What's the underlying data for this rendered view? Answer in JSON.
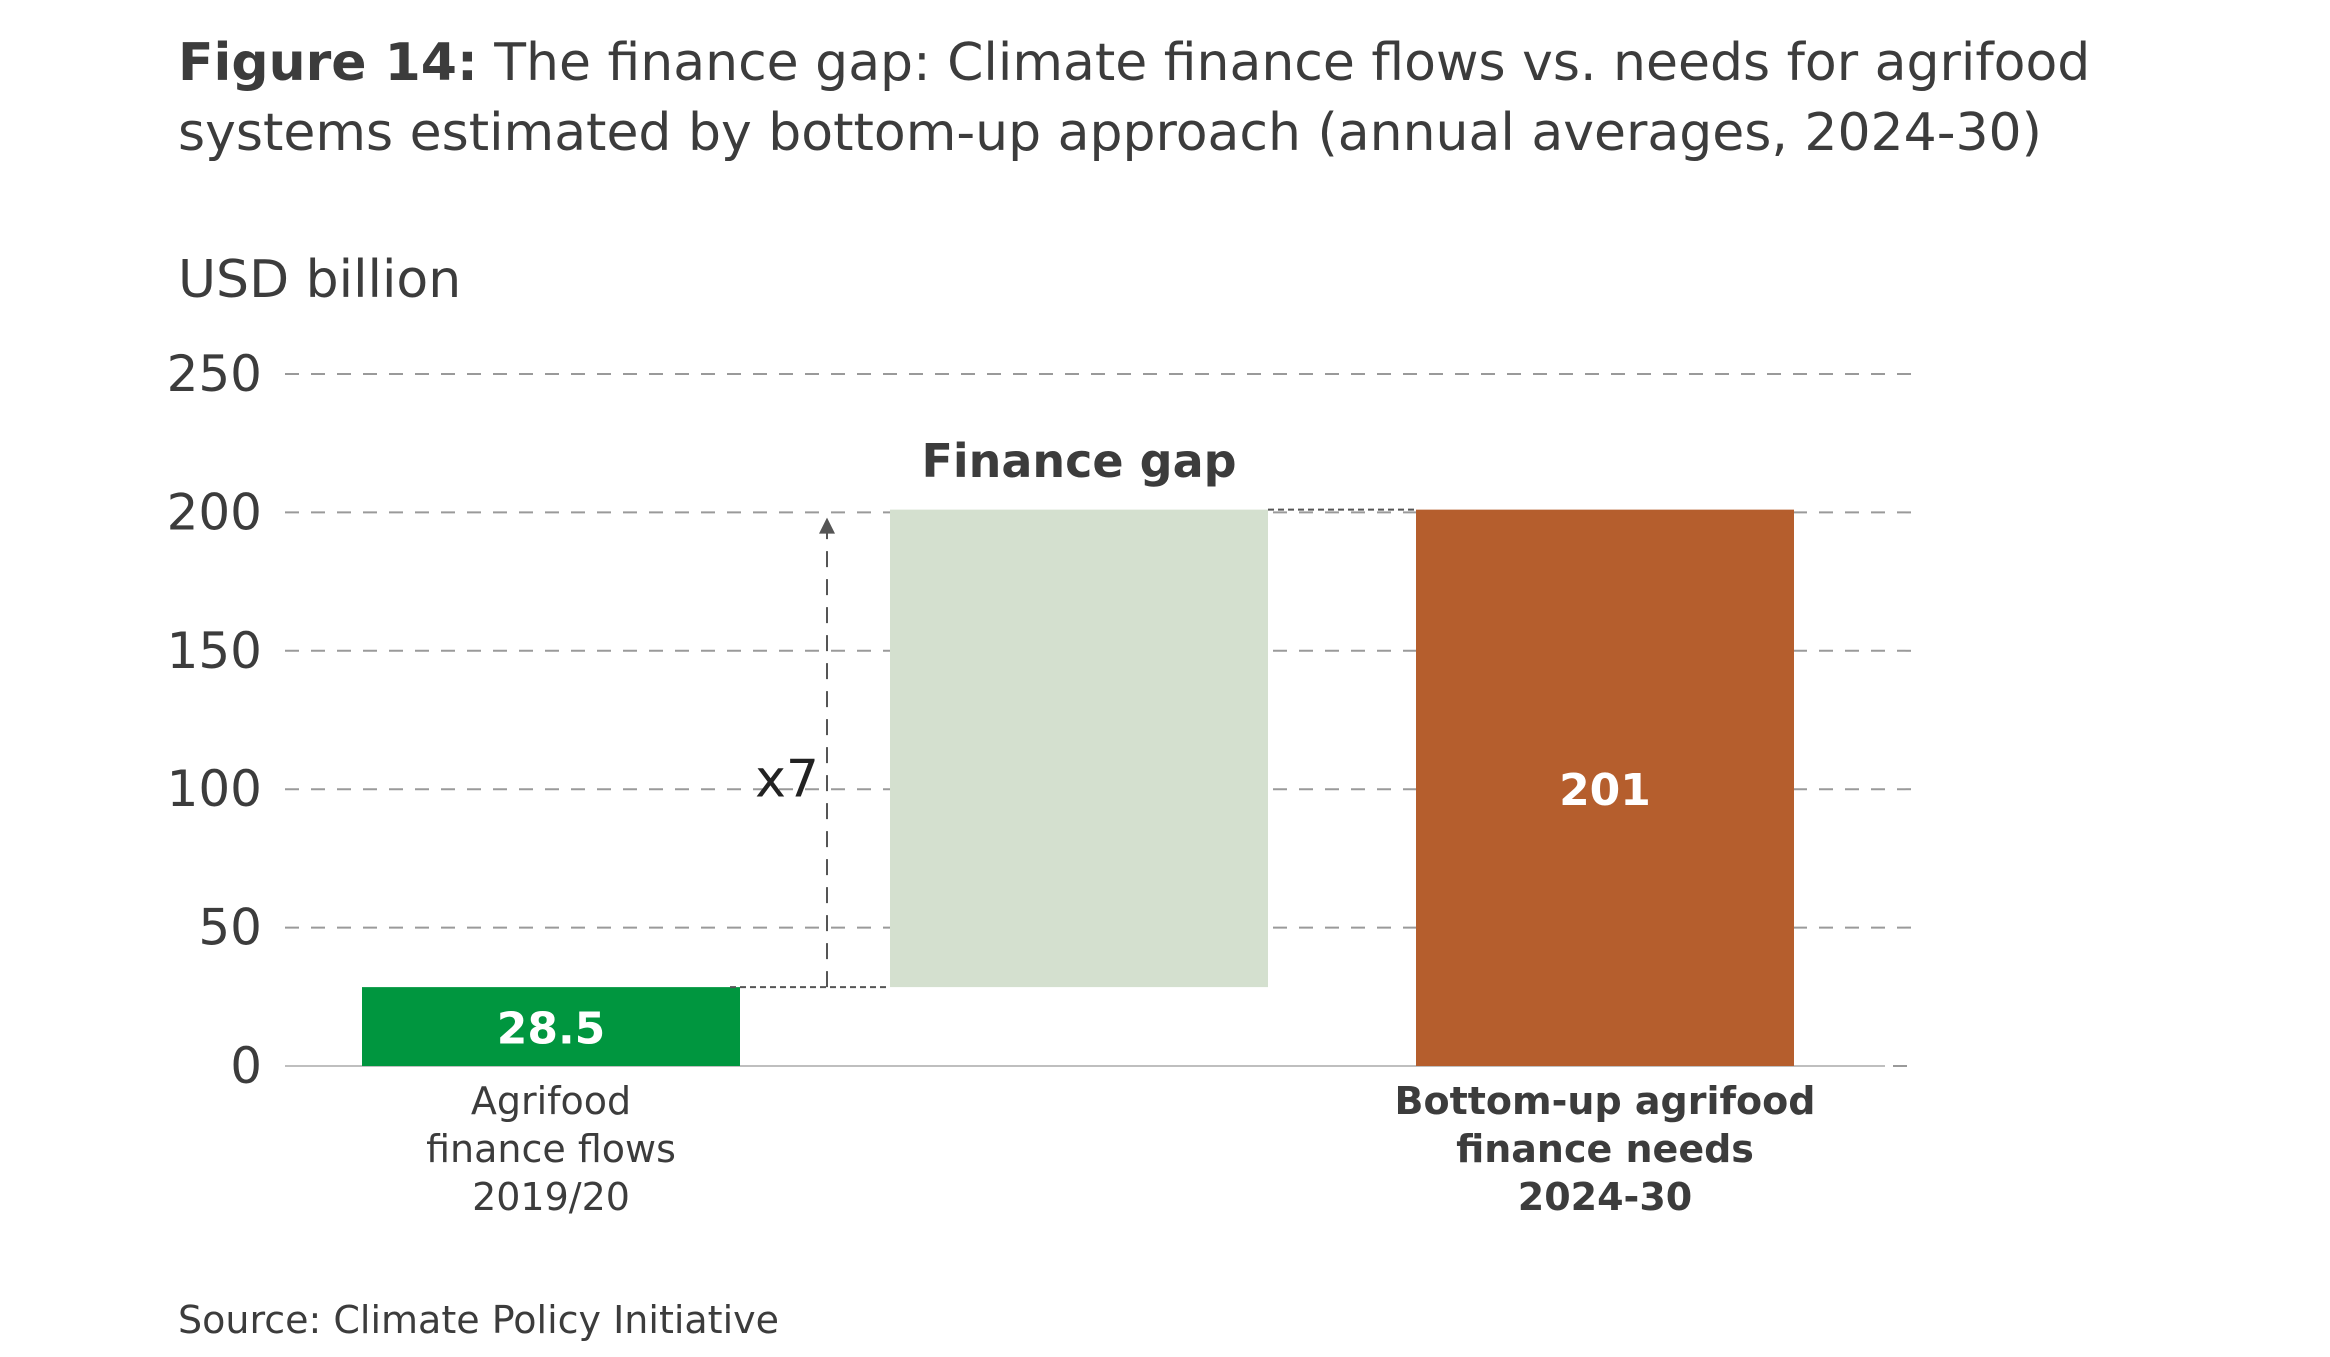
{
  "figure": {
    "label": "Figure 14:",
    "title": "The finance gap: Climate finance flows vs. needs for agrifood systems estimated by bottom-up approach (annual averages, 2024-30)",
    "source": "Source: Climate Policy Initiative"
  },
  "chart_data": {
    "type": "bar",
    "title": "The finance gap: Climate finance flows vs. needs for agrifood systems estimated by bottom-up approach (annual averages, 2024-30)",
    "ylabel": "USD billion",
    "xlabel": "",
    "ylim": [
      0,
      250
    ],
    "yticks": [
      0,
      50,
      100,
      150,
      200,
      250
    ],
    "grid": true,
    "categories": [
      [
        "Agrifood",
        "finance flows",
        "2019/20"
      ],
      [
        "Bottom-up agrifood",
        "finance needs",
        "2024-30"
      ]
    ],
    "category_bold": [
      false,
      true
    ],
    "bars": [
      {
        "label": "Agrifood finance flows 2019/20",
        "base": 0,
        "value": 28.5,
        "value_label": "28.5",
        "color": "#00963f",
        "label_color": "#ffffff"
      },
      {
        "label": "Finance gap",
        "base": 28.5,
        "value": 201,
        "value_label": "",
        "color": "#d4e0cf",
        "label_color": "#3c3c3c"
      },
      {
        "label": "Bottom-up agrifood finance needs 2024-30",
        "base": 0,
        "value": 201,
        "value_label": "201",
        "color": "#b55e2d",
        "label_color": "#ffffff"
      }
    ],
    "annotations": {
      "gap_label": "Finance gap",
      "multiplier": "x7"
    }
  },
  "colors": {
    "text": "#3c3c3c",
    "grid": "#9a9a9a",
    "axis": "#bfbfbf"
  }
}
